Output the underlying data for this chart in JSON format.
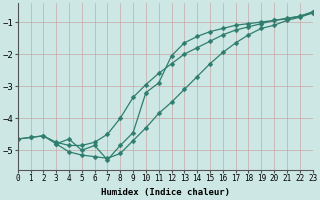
{
  "xlabel": "Humidex (Indice chaleur)",
  "xlim": [
    0,
    23
  ],
  "ylim": [
    -5.6,
    -0.4
  ],
  "yticks": [
    -5,
    -4,
    -3,
    -2,
    -1
  ],
  "xticks": [
    0,
    1,
    2,
    3,
    4,
    5,
    6,
    7,
    8,
    9,
    10,
    11,
    12,
    13,
    14,
    15,
    16,
    17,
    18,
    19,
    20,
    21,
    22,
    23
  ],
  "bg_color": "#cde8e4",
  "grid_color": "#c8a8a8",
  "line_color": "#2e7d6e",
  "line1_x": [
    0,
    1,
    2,
    3,
    4,
    5,
    6,
    7,
    8,
    9,
    10,
    11,
    12,
    13,
    14,
    15,
    16,
    17,
    18,
    19,
    20,
    21,
    22,
    23
  ],
  "line1_y": [
    -4.65,
    -4.6,
    -4.55,
    -4.8,
    -5.05,
    -5.15,
    -5.2,
    -5.25,
    -5.1,
    -4.7,
    -4.3,
    -3.85,
    -3.5,
    -3.1,
    -2.7,
    -2.3,
    -1.95,
    -1.65,
    -1.4,
    -1.2,
    -1.1,
    -0.95,
    -0.85,
    -0.72
  ],
  "line2_x": [
    0,
    1,
    2,
    3,
    4,
    5,
    6,
    7,
    8,
    9,
    10,
    11,
    12,
    13,
    14,
    15,
    16,
    17,
    18,
    19,
    20,
    21,
    22,
    23
  ],
  "line2_y": [
    -4.65,
    -4.6,
    -4.55,
    -4.75,
    -4.85,
    -4.85,
    -4.75,
    -4.5,
    -4.0,
    -3.35,
    -2.95,
    -2.6,
    -2.3,
    -2.0,
    -1.8,
    -1.6,
    -1.4,
    -1.25,
    -1.15,
    -1.05,
    -0.95,
    -0.9,
    -0.82,
    -0.7
  ],
  "line3_x": [
    3,
    4,
    5,
    6,
    7,
    8,
    9,
    10,
    11,
    12,
    13,
    14,
    15,
    16,
    17,
    18,
    19,
    20,
    21,
    22,
    23
  ],
  "line3_y": [
    -4.8,
    -4.65,
    -5.0,
    -4.85,
    -5.3,
    -4.85,
    -4.45,
    -3.2,
    -2.9,
    -2.05,
    -1.65,
    -1.45,
    -1.3,
    -1.2,
    -1.1,
    -1.05,
    -1.0,
    -0.95,
    -0.88,
    -0.82,
    -0.68
  ]
}
